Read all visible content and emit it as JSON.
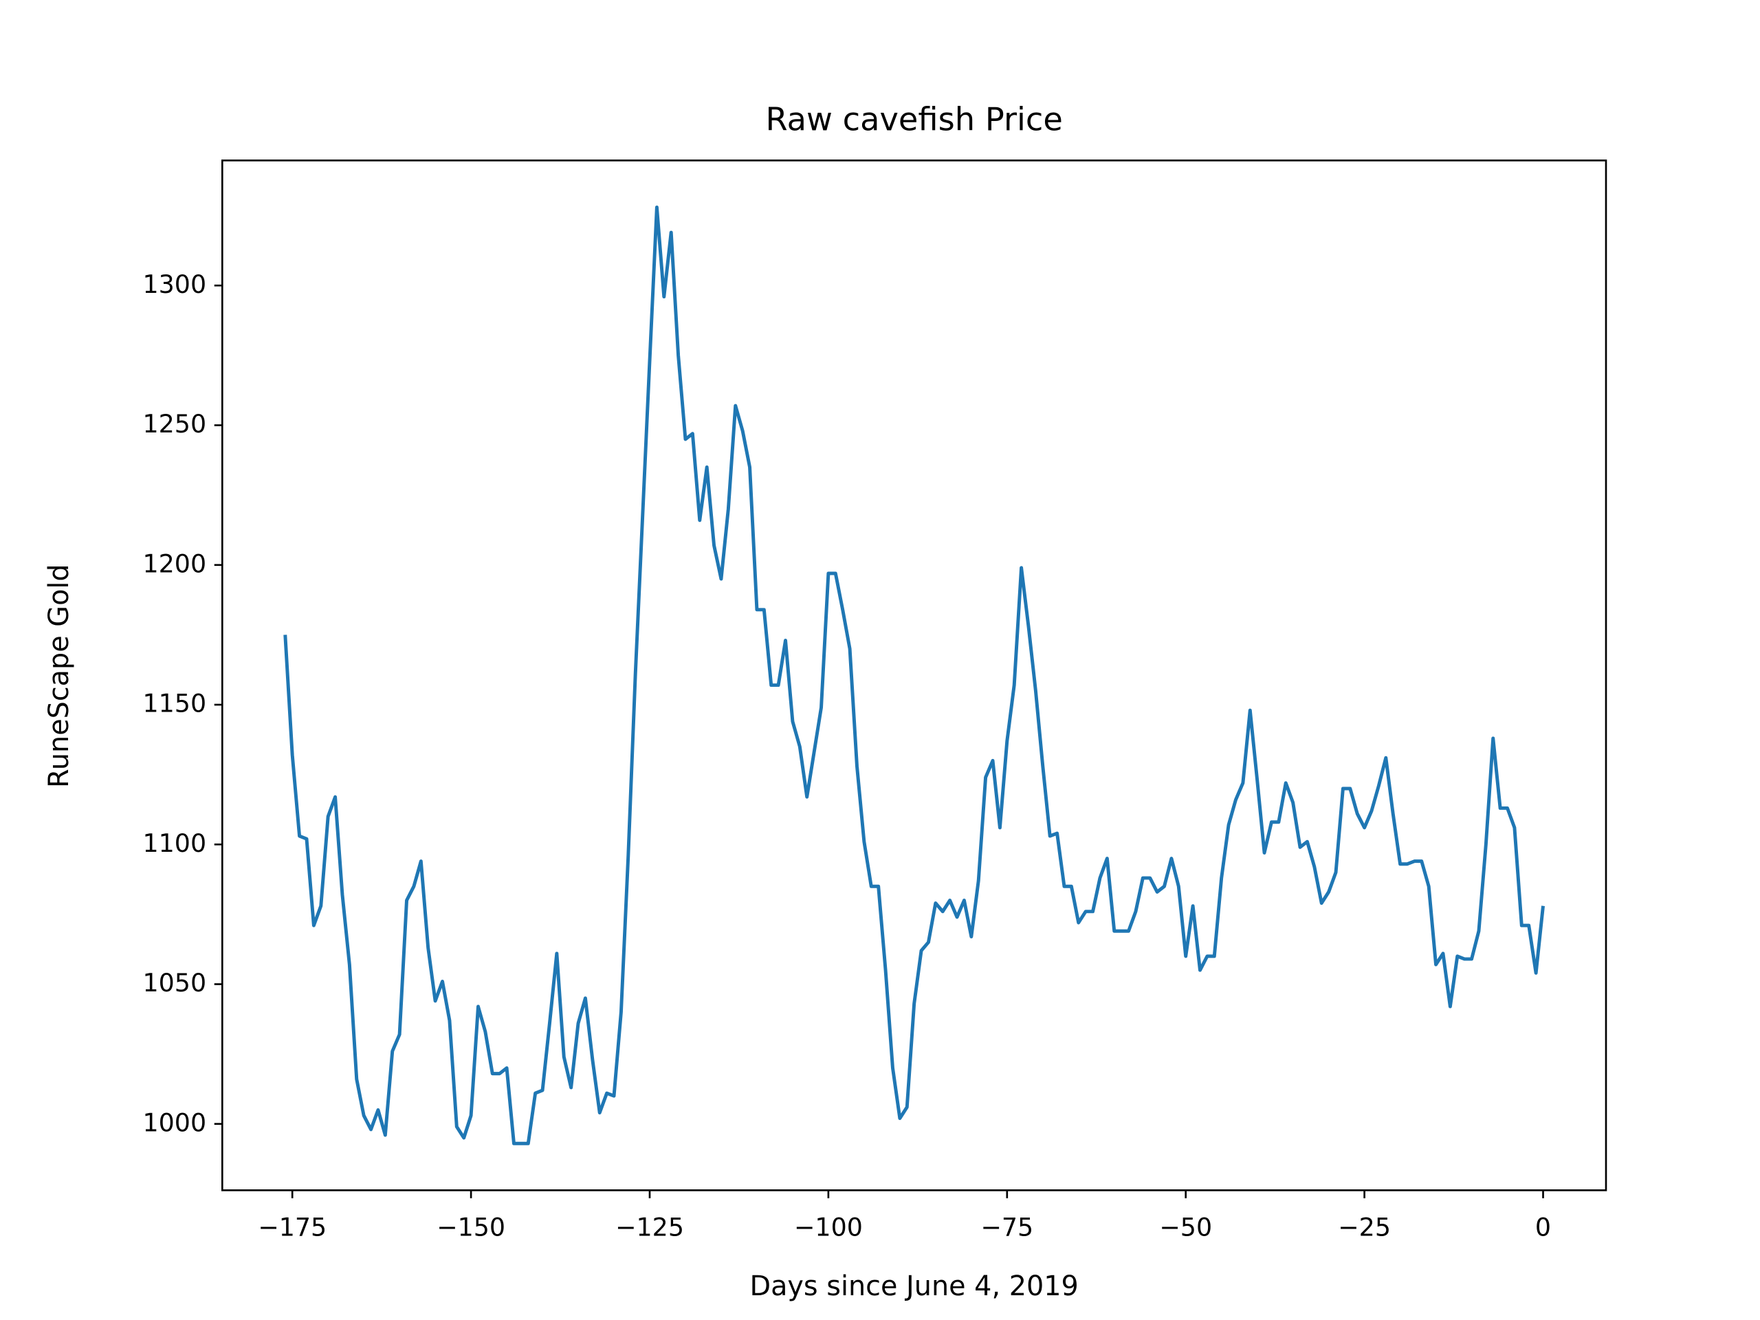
{
  "chart_data": {
    "type": "line",
    "title": "Raw cavefish Price",
    "x_label": "Days since June 4, 2019",
    "y_label": "RuneScape Gold",
    "color": "#1f77b4",
    "grid": false,
    "x": [
      -176,
      -175,
      -174,
      -173,
      -172,
      -171,
      -170,
      -169,
      -168,
      -167,
      -166,
      -165,
      -164,
      -163,
      -162,
      -161,
      -160,
      -159,
      -158,
      -157,
      -156,
      -155,
      -154,
      -153,
      -152,
      -151,
      -150,
      -149,
      -148,
      -147,
      -146,
      -145,
      -144,
      -143,
      -142,
      -141,
      -140,
      -139,
      -138,
      -137,
      -136,
      -135,
      -134,
      -133,
      -132,
      -131,
      -130,
      -129,
      -128,
      -127,
      -126,
      -125,
      -124,
      -123,
      -122,
      -121,
      -120,
      -119,
      -118,
      -117,
      -116,
      -115,
      -114,
      -113,
      -112,
      -111,
      -110,
      -109,
      -108,
      -107,
      -106,
      -105,
      -104,
      -103,
      -102,
      -101,
      -100,
      -99,
      -98,
      -97,
      -96,
      -95,
      -94,
      -93,
      -92,
      -91,
      -90,
      -89,
      -88,
      -87,
      -86,
      -85,
      -84,
      -83,
      -82,
      -81,
      -80,
      -79,
      -78,
      -77,
      -76,
      -75,
      -74,
      -73,
      -72,
      -71,
      -70,
      -69,
      -68,
      -67,
      -66,
      -65,
      -64,
      -63,
      -62,
      -61,
      -60,
      -59,
      -58,
      -57,
      -56,
      -55,
      -54,
      -53,
      -52,
      -51,
      -50,
      -49,
      -48,
      -47,
      -46,
      -45,
      -44,
      -43,
      -42,
      -41,
      -40,
      -39,
      -38,
      -37,
      -36,
      -35,
      -34,
      -33,
      -32,
      -31,
      -30,
      -29,
      -28,
      -27,
      -26,
      -25,
      -24,
      -23,
      -22,
      -21,
      -20,
      -19,
      -18,
      -17,
      -16,
      -15,
      -14,
      -13,
      -12,
      -11,
      -10,
      -9,
      -8,
      -7,
      -6,
      -5,
      -4,
      -3,
      -2,
      -1,
      0
    ],
    "values": [
      1175,
      1132,
      1103,
      1102,
      1071,
      1078,
      1110,
      1117,
      1082,
      1057,
      1016,
      1003,
      998,
      1005,
      996,
      1026,
      1032,
      1080,
      1085,
      1094,
      1063,
      1044,
      1051,
      1037,
      999,
      995,
      1003,
      1042,
      1033,
      1018,
      1018,
      1020,
      993,
      993,
      993,
      1011,
      1012,
      1036,
      1061,
      1024,
      1013,
      1036,
      1045,
      1023,
      1004,
      1011,
      1010,
      1040,
      1096,
      1161,
      1217,
      1273,
      1328,
      1296,
      1319,
      1275,
      1245,
      1247,
      1216,
      1235,
      1207,
      1195,
      1220,
      1257,
      1248,
      1235,
      1184,
      1184,
      1157,
      1157,
      1173,
      1144,
      1135,
      1117,
      1133,
      1149,
      1197,
      1197,
      1184,
      1170,
      1128,
      1101,
      1085,
      1085,
      1055,
      1020,
      1002,
      1006,
      1043,
      1062,
      1065,
      1079,
      1076,
      1080,
      1074,
      1080,
      1067,
      1087,
      1124,
      1130,
      1106,
      1137,
      1157,
      1199,
      1178,
      1155,
      1128,
      1103,
      1104,
      1085,
      1085,
      1072,
      1076,
      1076,
      1088,
      1095,
      1069,
      1069,
      1069,
      1076,
      1088,
      1088,
      1083,
      1085,
      1095,
      1085,
      1060,
      1078,
      1055,
      1060,
      1060,
      1088,
      1107,
      1116,
      1122,
      1148,
      1123,
      1097,
      1108,
      1108,
      1122,
      1115,
      1099,
      1101,
      1092,
      1079,
      1083,
      1090,
      1120,
      1120,
      1111,
      1106,
      1112,
      1121,
      1131,
      1111,
      1093,
      1093,
      1094,
      1094,
      1085,
      1057,
      1061,
      1042,
      1060,
      1059,
      1059,
      1069,
      1100,
      1138,
      1113,
      1113,
      1106,
      1071,
      1071,
      1054,
      1078
    ],
    "xlim": [
      -184.8,
      8.8
    ],
    "ylim": [
      976.25,
      1344.75
    ],
    "xticks": [
      {
        "value": -175,
        "label": "−175"
      },
      {
        "value": -150,
        "label": "−150"
      },
      {
        "value": -125,
        "label": "−125"
      },
      {
        "value": -100,
        "label": "−100"
      },
      {
        "value": -75,
        "label": "−75"
      },
      {
        "value": -50,
        "label": "−50"
      },
      {
        "value": -25,
        "label": "−25"
      },
      0
    ],
    "yticks": [
      1000,
      1050,
      1100,
      1150,
      1200,
      1250,
      1300
    ]
  }
}
